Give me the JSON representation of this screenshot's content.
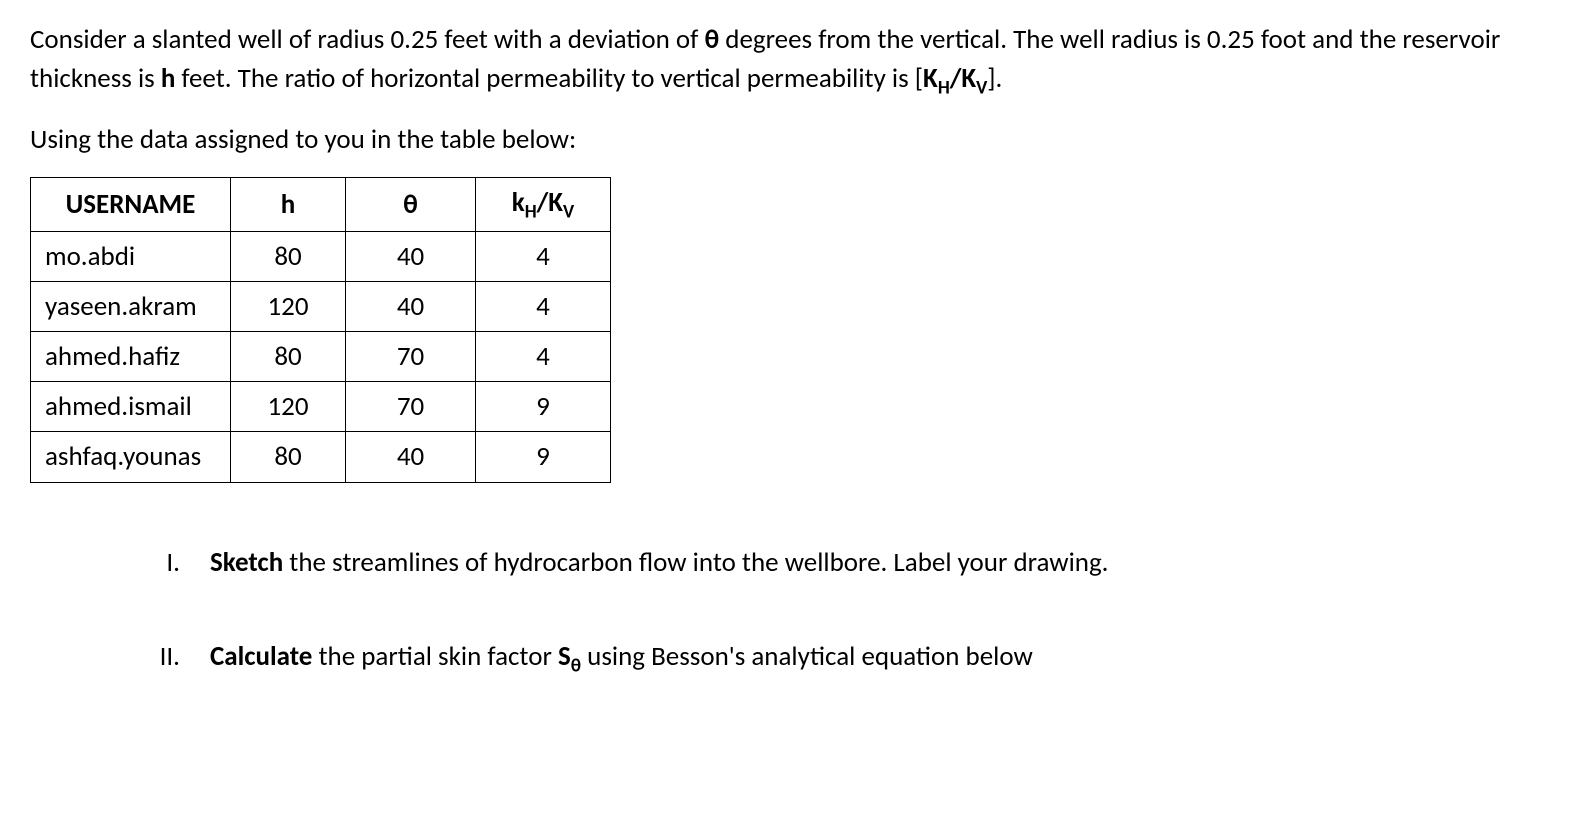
{
  "paragraph1": {
    "text_part1": "Consider a slanted well of radius 0.25 feet with a deviation of ",
    "theta": "θ",
    "text_part2": " degrees from the vertical.  The well radius is 0.25 foot and the reservoir thickness is ",
    "h": "h",
    "text_part3": " feet. The ratio of horizontal permeability to vertical permeability is [",
    "kh": "K",
    "kh_sub": "H",
    "slash": "/",
    "kv": "K",
    "kv_sub": "V",
    "text_part4": "]."
  },
  "paragraph2": "Using the data assigned to you in the table below:",
  "table": {
    "headers": {
      "username": "USERNAME",
      "h": "h",
      "theta": "θ",
      "ratio_k": "k",
      "ratio_h_sub": "H",
      "ratio_slash": "/",
      "ratio_K": "K",
      "ratio_v_sub": "V"
    },
    "rows": [
      {
        "username": "mo.abdi",
        "h": "80",
        "theta": "40",
        "ratio": "4"
      },
      {
        "username": "yaseen.akram",
        "h": "120",
        "theta": "40",
        "ratio": "4"
      },
      {
        "username": "ahmed.hafiz",
        "h": "80",
        "theta": "70",
        "ratio": "4"
      },
      {
        "username": "ahmed.ismail",
        "h": "120",
        "theta": "70",
        "ratio": "9"
      },
      {
        "username": "ashfaq.younas",
        "h": "80",
        "theta": "40",
        "ratio": "9"
      }
    ]
  },
  "list": {
    "item1": {
      "numeral": "I.",
      "bold": "Sketch",
      "text": " the streamlines of hydrocarbon flow into the wellbore. Label your drawing."
    },
    "item2": {
      "numeral": "II.",
      "bold": "Calculate",
      "text_part1": " the partial skin factor ",
      "s": "S",
      "theta_sub": "θ",
      "text_part2": " using Besson's analytical equation below"
    }
  }
}
